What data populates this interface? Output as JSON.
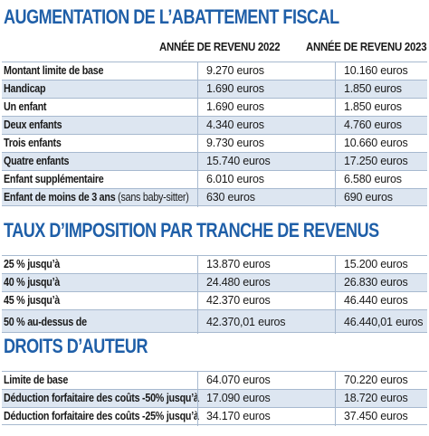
{
  "sections": [
    {
      "title": "AUGMENTATION DE L’ABATTEMENT FISCAL",
      "col_2022": "ANNÉE DE REVENU 2022",
      "col_2023": "ANNÉE DE REVENU 2023",
      "rows": [
        {
          "label": "Montant limite de base",
          "note": "",
          "v2022": "9.270 euros",
          "v2023": "10.160 euros"
        },
        {
          "label": "Handicap",
          "note": "",
          "v2022": "1.690 euros",
          "v2023": "1.850 euros"
        },
        {
          "label": "Un enfant",
          "note": "",
          "v2022": "1.690 euros",
          "v2023": "1.850 euros"
        },
        {
          "label": "Deux enfants",
          "note": "",
          "v2022": "4.340 euros",
          "v2023": "4.760 euros"
        },
        {
          "label": "Trois enfants",
          "note": "",
          "v2022": "9.730 euros",
          "v2023": "10.660 euros"
        },
        {
          "label": "Quatre enfants",
          "note": "",
          "v2022": "15.740 euros",
          "v2023": "17.250 euros"
        },
        {
          "label": "Enfant supplémentaire",
          "note": "",
          "v2022": "6.010 euros",
          "v2023": "6.580 euros"
        },
        {
          "label": "Enfant de moins de 3 ans",
          "note": " (sans baby-sitter)",
          "v2022": "630 euros",
          "v2023": "690 euros"
        }
      ]
    },
    {
      "title": "TAUX D’IMPOSITION PAR TRANCHE DE REVENUS",
      "rows": [
        {
          "label": "25 % jusqu’à",
          "note": "",
          "v2022": "13.870 euros",
          "v2023": "15.200 euros"
        },
        {
          "label": "40 % jusqu’à",
          "note": "",
          "v2022": "24.480 euros",
          "v2023": "26.830 euros"
        },
        {
          "label": "45 % jusqu’à",
          "note": "",
          "v2022": "42.370 euros",
          "v2023": "46.440 euros"
        },
        {
          "label": "50 % au-dessus de",
          "note": "",
          "v2022": "42.370,01 euros",
          "v2023": "46.440,01 euros"
        }
      ]
    },
    {
      "title": "DROITS D’AUTEUR",
      "rows": [
        {
          "label": "Limite de base",
          "note": "",
          "v2022": "64.070 euros",
          "v2023": "70.220 euros"
        },
        {
          "label": "Déduction forfaitaire des coûts -50% jusqu’à",
          "note": "",
          "v2022": "17.090 euros",
          "v2023": "18.720 euros"
        },
        {
          "label": "Déduction forfaitaire des coûts -25% jusqu’à",
          "note": "",
          "v2022": "34.170 euros",
          "v2023": "37.450 euros"
        }
      ]
    }
  ],
  "colors": {
    "title": "#1f5fa8",
    "shade": "#dde6f1",
    "rule": "#a7b9cf"
  }
}
